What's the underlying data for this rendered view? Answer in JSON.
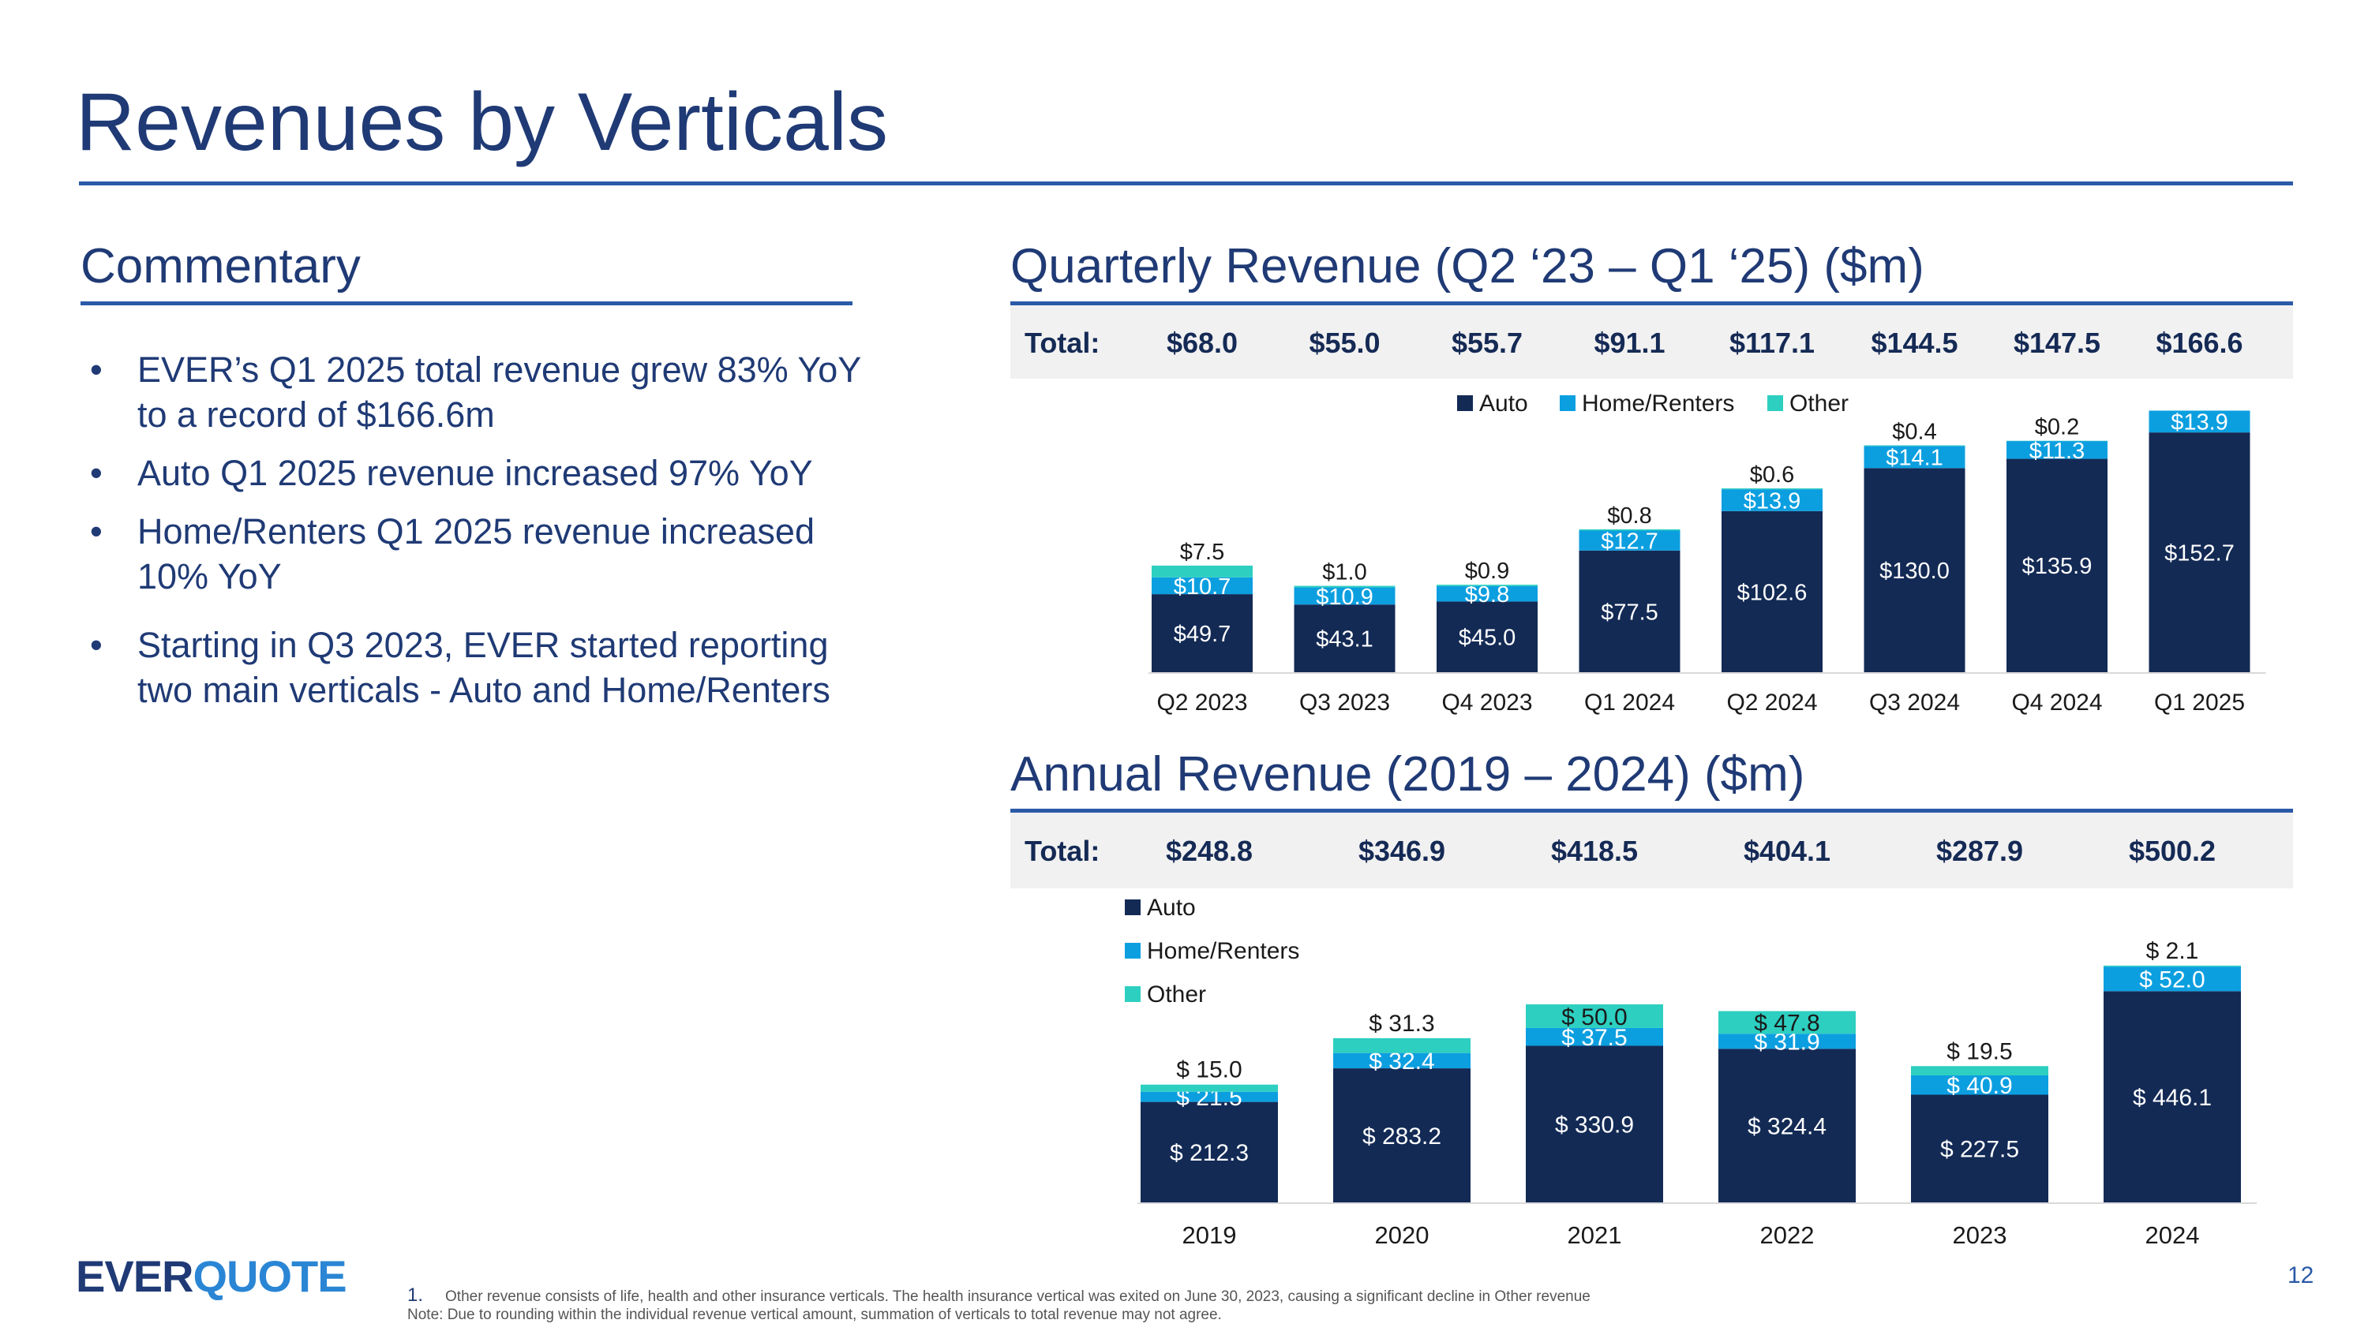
{
  "title": "Revenues by Verticals",
  "commentary": {
    "heading": "Commentary",
    "bullets": [
      "EVER’s Q1 2025 total revenue grew 83% YoY to a record of $166.6m",
      "Auto Q1 2025 revenue increased 97% YoY",
      "Home/Renters Q1 2025 revenue increased 10% YoY",
      "Starting in Q3 2023, EVER started reporting two main verticals - Auto and Home/Renters"
    ]
  },
  "quarterly": {
    "title": "Quarterly Revenue (Q2 ‘23 – Q1 ‘25) ($m)",
    "total_label": "Total:",
    "totals": [
      "$68.0",
      "$55.0",
      "$55.7",
      "$91.1",
      "$117.1",
      "$144.5",
      "$147.5",
      "$166.6"
    ]
  },
  "annual": {
    "title": "Annual Revenue (2019 – 2024) ($m)",
    "total_label": "Total:",
    "totals": [
      "$248.8",
      "$346.9",
      "$418.5",
      "$404.1",
      "$287.9",
      "$500.2"
    ]
  },
  "colors": {
    "auto": "#132a55",
    "home": "#0c9fe0",
    "other": "#2dcfc0"
  },
  "chart_data": [
    {
      "type": "bar",
      "stacked": true,
      "title": "Quarterly Revenue (Q2 ‘23 – Q1 ‘25) ($m)",
      "categories": [
        "Q2 2023",
        "Q3 2023",
        "Q4 2023",
        "Q1 2024",
        "Q2 2024",
        "Q3 2024",
        "Q4 2024",
        "Q1 2025"
      ],
      "series": [
        {
          "name": "Auto",
          "values": [
            49.7,
            43.1,
            45.0,
            77.5,
            102.6,
            130.0,
            135.9,
            152.7
          ],
          "labels": [
            "$49.7",
            "$43.1",
            "$45.0",
            "$77.5",
            "$102.6",
            "$130.0",
            "$135.9",
            "$152.7"
          ]
        },
        {
          "name": "Home/Renters",
          "values": [
            10.7,
            10.9,
            9.8,
            12.7,
            13.9,
            14.1,
            11.3,
            13.9
          ],
          "labels": [
            "$10.7",
            "$10.9",
            "$9.8",
            "$12.7",
            "$13.9",
            "$14.1",
            "$11.3",
            "$13.9"
          ]
        },
        {
          "name": "Other",
          "values": [
            7.5,
            1.0,
            0.9,
            0.8,
            0.6,
            0.4,
            0.2,
            0.0
          ],
          "labels": [
            "$7.5",
            "$1.0",
            "$0.9",
            "$0.8",
            "$0.6",
            "$0.4",
            "$0.2",
            ""
          ]
        }
      ],
      "legend": [
        "Auto",
        "Home/Renters",
        "Other"
      ],
      "legend_position": "top-center",
      "ylim": [
        0,
        170
      ],
      "xlabel": "",
      "ylabel": "",
      "grid": false
    },
    {
      "type": "bar",
      "stacked": true,
      "title": "Annual Revenue (2019 – 2024) ($m)",
      "categories": [
        "2019",
        "2020",
        "2021",
        "2022",
        "2023",
        "2024"
      ],
      "series": [
        {
          "name": "Auto",
          "values": [
            212.3,
            283.2,
            330.9,
            324.4,
            227.5,
            446.1
          ],
          "labels": [
            "$ 212.3",
            "$ 283.2",
            "$ 330.9",
            "$ 324.4",
            "$ 227.5",
            "$ 446.1"
          ]
        },
        {
          "name": "Home/Renters",
          "values": [
            21.5,
            32.4,
            37.5,
            31.9,
            40.9,
            52.0
          ],
          "labels": [
            "$ 21.5",
            "$ 32.4",
            "$ 37.5",
            "$ 31.9",
            "$ 40.9",
            "$ 52.0"
          ]
        },
        {
          "name": "Other",
          "values": [
            15.0,
            31.3,
            50.0,
            47.8,
            19.5,
            2.1
          ],
          "labels": [
            "$ 15.0",
            "$ 31.3",
            "$ 50.0",
            "$ 47.8",
            "$ 19.5",
            "$ 2.1"
          ]
        }
      ],
      "legend": [
        "Auto",
        "Home/Renters",
        "Other"
      ],
      "legend_position": "top-left",
      "ylim": [
        0,
        500
      ],
      "xlabel": "",
      "ylabel": "",
      "grid": false
    }
  ],
  "logo": {
    "part1": "EVER",
    "part2": "QUOTE"
  },
  "page_number": "12",
  "footnotes": {
    "number": "1.",
    "line1": "Other revenue consists of life, health and other insurance verticals. The health insurance vertical was exited on June 30, 2023, causing a significant decline in Other revenue",
    "line2": "Note: Due to rounding within the individual revenue vertical amount, summation of verticals to total revenue may not agree."
  }
}
